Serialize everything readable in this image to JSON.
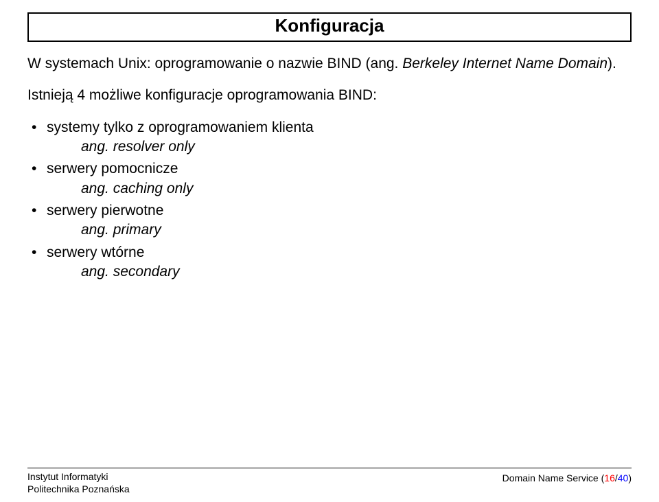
{
  "title": "Konfiguracja",
  "intro_part1": "W systemach Unix: oprogramowanie o nazwie BIND (ang. ",
  "intro_italic": "Berkeley Internet Name Domain",
  "intro_part2": ").",
  "lead": "Istnieją 4 możliwe konfiguracje oprogramowania BIND:",
  "items": [
    {
      "main": "systemy tylko z oprogramowaniem klienta",
      "sub": "ang. resolver only"
    },
    {
      "main": "serwery pomocnicze",
      "sub": "ang. caching only"
    },
    {
      "main": "serwery pierwotne",
      "sub": "ang. primary"
    },
    {
      "main": "serwery wtórne",
      "sub": "ang. secondary"
    }
  ],
  "footer": {
    "left_line1": "Instytut Informatyki",
    "left_line2": "Politechnika Poznańska",
    "right_label": "Domain Name Service (",
    "page_current": "16",
    "page_sep": "/",
    "page_total": "40",
    "right_close": ")"
  }
}
